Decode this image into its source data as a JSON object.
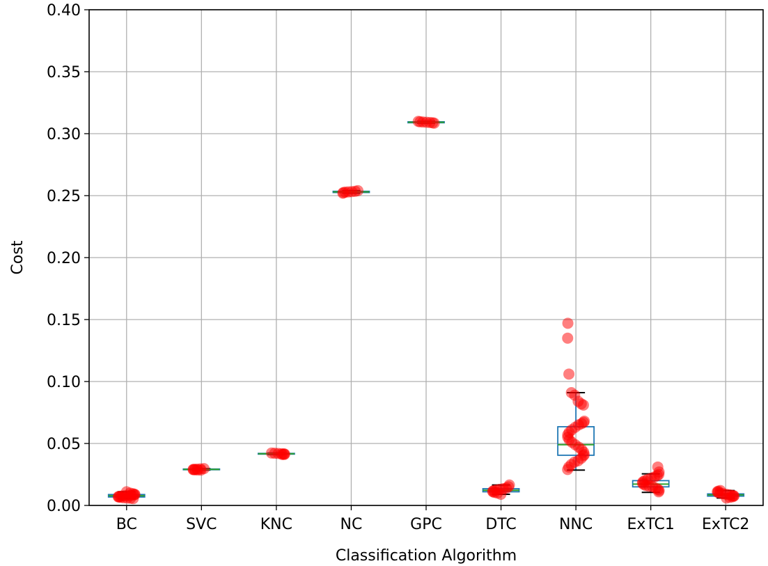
{
  "chart_data": {
    "type": "box",
    "xlabel": "Classification Algorithm",
    "ylabel": "Cost",
    "ylim": [
      0.0,
      0.4
    ],
    "yticks": [
      "0.00",
      "0.05",
      "0.10",
      "0.15",
      "0.20",
      "0.25",
      "0.30",
      "0.35",
      "0.40"
    ],
    "grid": true,
    "categories": [
      "BC",
      "SVC",
      "KNC",
      "NC",
      "GPC",
      "DTC",
      "NNC",
      "ExTC1",
      "ExTC2"
    ],
    "boxes": [
      {
        "name": "BC",
        "q1": 0.0068,
        "median": 0.0078,
        "q3": 0.0088,
        "whisker_low": 0.0055,
        "whisker_high": 0.011
      },
      {
        "name": "SVC",
        "q1": 0.0288,
        "median": 0.0291,
        "q3": 0.0294,
        "whisker_low": 0.0285,
        "whisker_high": 0.0297
      },
      {
        "name": "KNC",
        "q1": 0.0414,
        "median": 0.0417,
        "q3": 0.042,
        "whisker_low": 0.0411,
        "whisker_high": 0.0423
      },
      {
        "name": "NC",
        "q1": 0.2525,
        "median": 0.253,
        "q3": 0.2535,
        "whisker_low": 0.252,
        "whisker_high": 0.254
      },
      {
        "name": "GPC",
        "q1": 0.3088,
        "median": 0.3092,
        "q3": 0.3096,
        "whisker_low": 0.3085,
        "whisker_high": 0.3099
      },
      {
        "name": "DTC",
        "q1": 0.011,
        "median": 0.0122,
        "q3": 0.0135,
        "whisker_low": 0.009,
        "whisker_high": 0.0165
      },
      {
        "name": "NNC",
        "q1": 0.0405,
        "median": 0.049,
        "q3": 0.0635,
        "whisker_low": 0.0285,
        "whisker_high": 0.091
      },
      {
        "name": "ExTC1",
        "q1": 0.015,
        "median": 0.0172,
        "q3": 0.02,
        "whisker_low": 0.0105,
        "whisker_high": 0.0255
      },
      {
        "name": "ExTC2",
        "q1": 0.0075,
        "median": 0.0085,
        "q3": 0.0093,
        "whisker_low": 0.006,
        "whisker_high": 0.012
      }
    ],
    "points": [
      {
        "name": "BC",
        "values": [
          0.011,
          0.01,
          0.0095,
          0.009,
          0.0088,
          0.0085,
          0.0082,
          0.008,
          0.0078,
          0.0075,
          0.0072,
          0.007,
          0.0068,
          0.0065,
          0.0062,
          0.006,
          0.0058,
          0.0055
        ]
      },
      {
        "name": "SVC",
        "values": [
          0.0297,
          0.0295,
          0.0293,
          0.0291,
          0.029,
          0.0289,
          0.0288,
          0.0286,
          0.0285
        ]
      },
      {
        "name": "KNC",
        "values": [
          0.0423,
          0.0421,
          0.0419,
          0.0417,
          0.0416,
          0.0414,
          0.0412,
          0.0411
        ]
      },
      {
        "name": "NC",
        "values": [
          0.254,
          0.2535,
          0.2532,
          0.253,
          0.2528,
          0.2525,
          0.252
        ]
      },
      {
        "name": "GPC",
        "values": [
          0.3099,
          0.3096,
          0.3094,
          0.3092,
          0.309,
          0.3088,
          0.3085
        ]
      },
      {
        "name": "DTC",
        "values": [
          0.0165,
          0.015,
          0.014,
          0.0135,
          0.013,
          0.0125,
          0.012,
          0.0115,
          0.011,
          0.0105,
          0.01,
          0.009
        ]
      },
      {
        "name": "NNC",
        "values": [
          0.147,
          0.135,
          0.106,
          0.091,
          0.089,
          0.084,
          0.082,
          0.081,
          0.068,
          0.067,
          0.066,
          0.065,
          0.063,
          0.061,
          0.059,
          0.057,
          0.055,
          0.053,
          0.051,
          0.049,
          0.047,
          0.045,
          0.043,
          0.041,
          0.04,
          0.038,
          0.036,
          0.035,
          0.033,
          0.031,
          0.029
        ]
      },
      {
        "name": "ExTC1",
        "values": [
          0.031,
          0.027,
          0.025,
          0.024,
          0.023,
          0.022,
          0.021,
          0.02,
          0.019,
          0.018,
          0.017,
          0.016,
          0.0155,
          0.015,
          0.014,
          0.013,
          0.012,
          0.011
        ]
      },
      {
        "name": "ExTC2",
        "values": [
          0.012,
          0.0115,
          0.011,
          0.0105,
          0.01,
          0.0095,
          0.009,
          0.0085,
          0.008,
          0.0078,
          0.0075,
          0.007,
          0.0065,
          0.006
        ]
      }
    ],
    "colors": {
      "box": "#1f77b4",
      "median": "#2ca02c",
      "whisker": "#000000",
      "points": "#ff0000",
      "grid": "#b0b0b0"
    }
  }
}
